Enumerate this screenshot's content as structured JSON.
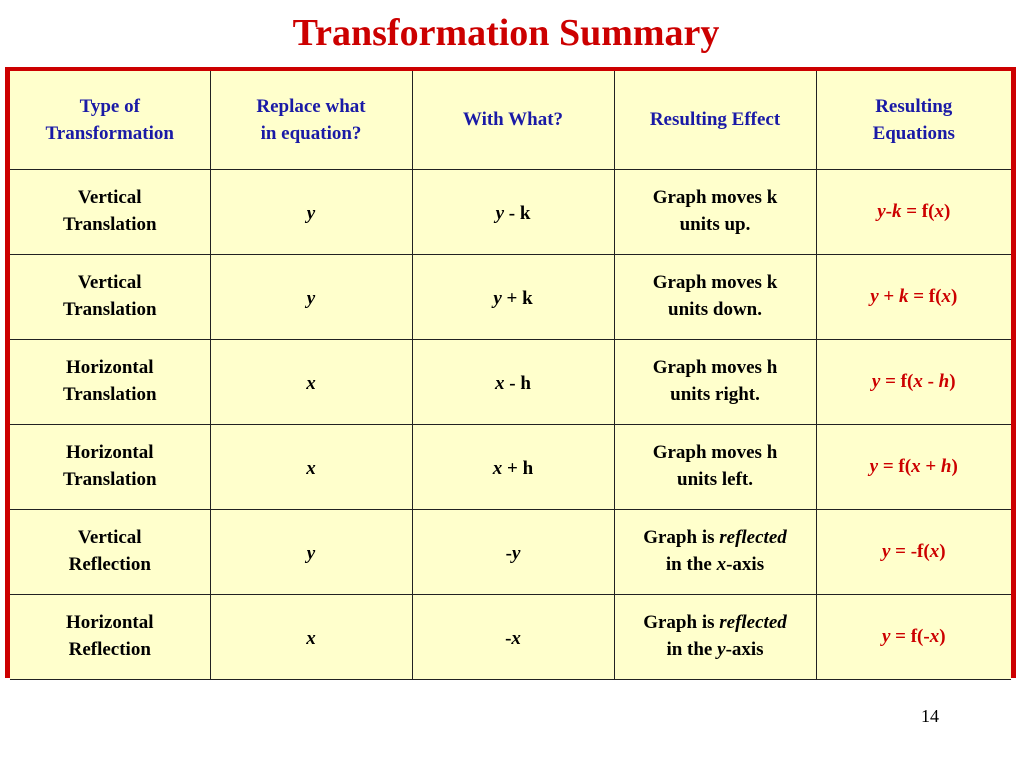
{
  "title": "Transformation Summary",
  "page_number": "14",
  "table": {
    "headers": {
      "type_line1": "Type of",
      "type_line2": "Transformation",
      "replace_line1": "Replace what",
      "replace_line2": "in equation?",
      "with": "With What?",
      "effect": "Resulting Effect",
      "eq_line1": "Resulting",
      "eq_line2": "Equations"
    },
    "rows": [
      {
        "type_line1": "Vertical",
        "type_line2": "Translation",
        "replace": "y",
        "with_var": "y",
        "with_rest": " - k",
        "effect_line1": "Graph moves k",
        "effect_line2": "units up.",
        "eq_a": "y",
        "eq_b": "-",
        "eq_c": "k",
        "eq_d": " = f(",
        "eq_e": "x",
        "eq_f": ")"
      },
      {
        "type_line1": "Vertical",
        "type_line2": "Translation",
        "replace": "y",
        "with_var": "y",
        "with_rest": " + k",
        "effect_line1": "Graph moves k",
        "effect_line2": "units down.",
        "eq_a": "y",
        "eq_b": " + ",
        "eq_c": "k",
        "eq_d": " = f(",
        "eq_e": "x",
        "eq_f": ")"
      },
      {
        "type_line1": "Horizontal",
        "type_line2": "Translation",
        "replace": "x",
        "with_var": "x",
        "with_rest": " - h",
        "effect_line1": "Graph moves h",
        "effect_line2": "units right.",
        "eq_a": "y",
        "eq_b": " = f(",
        "eq_c": "x",
        "eq_d": " - ",
        "eq_e": "h",
        "eq_f": ")"
      },
      {
        "type_line1": "Horizontal",
        "type_line2": "Translation",
        "replace": "x",
        "with_var": "x",
        "with_rest": " + h",
        "effect_line1": "Graph moves h",
        "effect_line2": "units left.",
        "eq_a": "y",
        "eq_b": " = f(",
        "eq_c": "x",
        "eq_d": " + ",
        "eq_e": "h",
        "eq_f": ")"
      },
      {
        "type_line1": "Vertical",
        "type_line2": "Reflection",
        "replace": "y",
        "with_pre": "-",
        "with_var": "y",
        "effect_pre": "Graph is ",
        "effect_em": "reflected",
        "effect_line2_pre": "in the ",
        "effect_line2_em": "x",
        "effect_line2_post": "-axis",
        "eq_a": "y",
        "eq_b": " = -f(",
        "eq_c": "x",
        "eq_d": ")"
      },
      {
        "type_line1": "Horizontal",
        "type_line2": "Reflection",
        "replace": "x",
        "with_pre": "-",
        "with_var": "x",
        "effect_pre": "Graph is ",
        "effect_em": "reflected",
        "effect_line2_pre": "in the ",
        "effect_line2_em": "y",
        "effect_line2_post": "-axis",
        "eq_a": "y",
        "eq_b": " = f(-",
        "eq_c": "x",
        "eq_d": ")"
      }
    ]
  },
  "colors": {
    "title": "#cc0000",
    "border": "#cc0000",
    "header_text": "#1a1aa6",
    "equation_text": "#cc0000",
    "table_background": "#ffffcc"
  }
}
